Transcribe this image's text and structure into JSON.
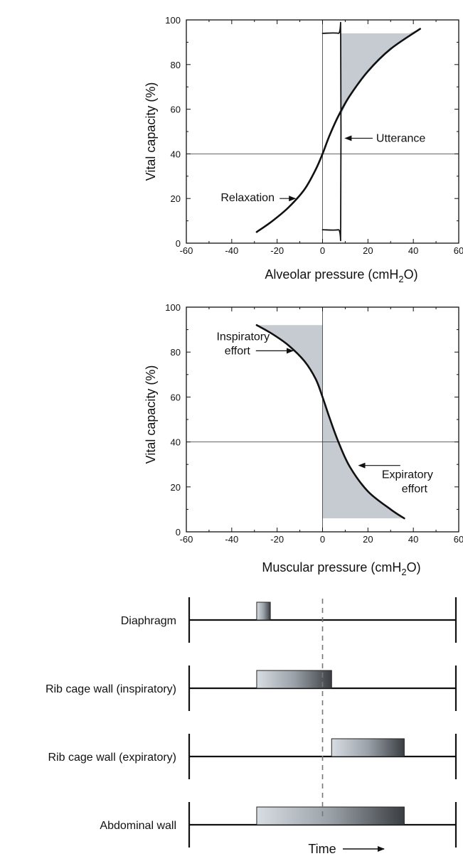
{
  "chart_data": [
    {
      "type": "line",
      "xlabel": "Alveolar pressure (cmH2O)",
      "ylabel": "Vital capacity (%)",
      "xlim": [
        -60,
        60
      ],
      "ylim": [
        0,
        100
      ],
      "xticks": [
        -60,
        -40,
        -20,
        0,
        20,
        40,
        60
      ],
      "yticks": [
        0,
        20,
        40,
        60,
        80,
        100
      ],
      "reference_lines": {
        "x": 0,
        "y": 40
      },
      "series": [
        {
          "label": "Relaxation",
          "x": [
            -29,
            -22,
            -15,
            -8,
            -3,
            0,
            3,
            7,
            12,
            20,
            30,
            43
          ],
          "y": [
            5,
            10,
            16,
            24,
            33,
            40,
            48,
            57,
            66,
            77,
            87,
            96
          ]
        },
        {
          "label": "Utterance",
          "x": [
            0,
            7,
            8,
            8,
            7,
            0
          ],
          "y": [
            6,
            6,
            8,
            92,
            94,
            94
          ]
        }
      ],
      "shaded_region": {
        "x": [
          8,
          8,
          38,
          43,
          30,
          20,
          12,
          8
        ],
        "y": [
          6,
          94,
          94,
          96,
          87,
          77,
          66,
          57
        ]
      },
      "annotations": [
        {
          "text": "Relaxation",
          "x": -33,
          "y": 20
        },
        {
          "text": "Utterance",
          "x": 23,
          "y": 47
        }
      ],
      "grid": false
    },
    {
      "type": "line",
      "xlabel": "Muscular pressure (cmH2O)",
      "ylabel": "Vital capacity (%)",
      "xlim": [
        -60,
        60
      ],
      "ylim": [
        0,
        100
      ],
      "xticks": [
        -60,
        -40,
        -20,
        0,
        20,
        40,
        60
      ],
      "yticks": [
        0,
        20,
        40,
        60,
        80,
        100
      ],
      "reference_lines": {
        "x": 0,
        "y": 40
      },
      "series": [
        {
          "x": [
            -29,
            -22,
            -15,
            -8,
            -3,
            0,
            3,
            7,
            12,
            20,
            30,
            36
          ],
          "y": [
            92,
            88,
            83,
            76,
            68,
            60,
            51,
            40,
            29,
            18,
            10,
            6
          ]
        }
      ],
      "shaded_region": {
        "x": [
          -29,
          0,
          0,
          36,
          30,
          20,
          12,
          7,
          3,
          0,
          -3,
          -8,
          -15,
          -22
        ],
        "y": [
          92,
          92,
          6,
          6,
          10,
          18,
          29,
          40,
          51,
          60,
          68,
          76,
          83,
          88
        ]
      },
      "annotations": [
        {
          "text": "Inspiratory",
          "line2": "effort",
          "x": -35,
          "y": 79
        },
        {
          "text": "Expiratory",
          "line2": "effort",
          "x": 28,
          "y": 27
        }
      ],
      "grid": false
    },
    {
      "type": "timeline",
      "xlabel": "Time",
      "rows": [
        {
          "label": "Diaphragm",
          "start": -29,
          "end": -23
        },
        {
          "label": "Rib cage wall (inspiratory)",
          "start": -29,
          "end": 4
        },
        {
          "label": "Rib cage wall (expiratory)",
          "start": 4,
          "end": 36
        },
        {
          "label": "Abdominal wall",
          "start": -29,
          "end": 36
        }
      ],
      "xlim": [
        -60,
        60
      ],
      "divider_x": 0
    }
  ]
}
